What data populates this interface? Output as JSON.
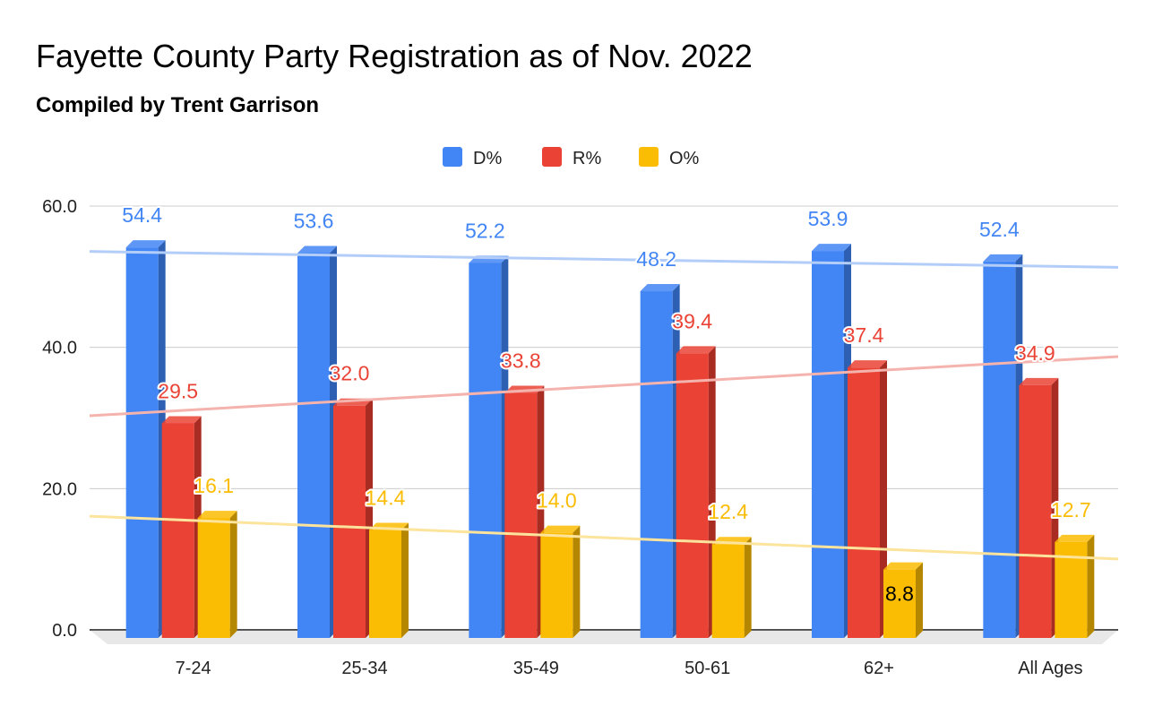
{
  "chart_data": {
    "type": "bar",
    "title": "Fayette County Party Registration as of Nov. 2022",
    "subtitle": "Compiled by Trent Garrison",
    "categories": [
      "7-24",
      "25-34",
      "35-49",
      "50-61",
      "62+",
      "All Ages"
    ],
    "series": [
      {
        "name": "D%",
        "values": [
          54.4,
          53.6,
          52.2,
          48.2,
          53.9,
          52.4
        ],
        "labels": [
          "54.4",
          "53.6",
          "52.2",
          "48.2",
          "53.9",
          "52.4"
        ],
        "color": "#4285f4",
        "side_color": "#2d5fb3",
        "trendline_color": "#b3cdf9"
      },
      {
        "name": "R%",
        "values": [
          29.5,
          32.0,
          33.8,
          39.4,
          37.4,
          34.9
        ],
        "labels": [
          "29.5",
          "32.0",
          "33.8",
          "39.4",
          "37.4",
          "34.9"
        ],
        "color": "#ea4335",
        "side_color": "#a82c22",
        "trendline_color": "#f5b3ad"
      },
      {
        "name": "O%",
        "values": [
          16.1,
          14.4,
          14.0,
          12.4,
          8.8,
          12.7
        ],
        "labels": [
          "16.1",
          "14.4",
          "14.0",
          "12.4",
          "8.8",
          "12.7"
        ],
        "color": "#fbbc04",
        "side_color": "#b58700",
        "trendline_color": "#fce49c"
      }
    ],
    "yticks": [
      "0.0",
      "20.0",
      "40.0",
      "60.0"
    ],
    "ylim": [
      0,
      60
    ],
    "trendlines": true,
    "three_d": true,
    "grid": true,
    "legend_position": "top"
  }
}
